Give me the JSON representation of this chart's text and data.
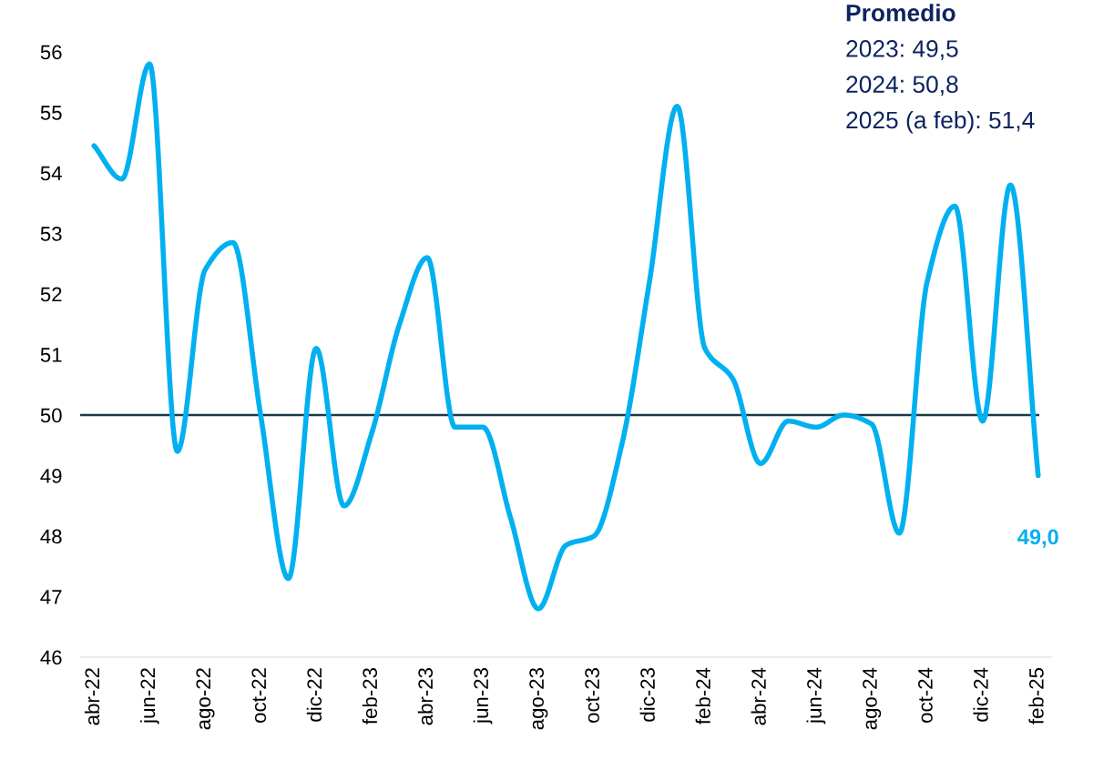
{
  "chart_data": {
    "type": "line",
    "categories": [
      "abr-22",
      null,
      "jun-22",
      null,
      "ago-22",
      null,
      "oct-22",
      null,
      "dic-22",
      null,
      "feb-23",
      null,
      "abr-23",
      null,
      "jun-23",
      null,
      "ago-23",
      null,
      "oct-23",
      null,
      "dic-23",
      null,
      "feb-24",
      null,
      "abr-24",
      null,
      "jun-24",
      null,
      "ago-24",
      null,
      "oct-24",
      null,
      "dic-24",
      null,
      "feb-25"
    ],
    "series": [
      {
        "color": "#00b0f0",
        "values": [
          54.45,
          53.9,
          55.8,
          49.4,
          52.4,
          52.85,
          50.0,
          47.3,
          51.1,
          48.5,
          49.7,
          51.5,
          52.6,
          49.8,
          49.8,
          48.3,
          46.8,
          47.85,
          48.0,
          49.5,
          52.2,
          55.1,
          51.1,
          50.6,
          49.2,
          49.9,
          49.8,
          50.0,
          49.85,
          48.05,
          52.2,
          53.45,
          49.9,
          53.8,
          49.0
        ],
        "value_labels": [
          null,
          null,
          null,
          null,
          null,
          null,
          null,
          null,
          null,
          null,
          null,
          null,
          null,
          null,
          null,
          null,
          null,
          null,
          null,
          null,
          null,
          null,
          null,
          null,
          null,
          null,
          null,
          null,
          null,
          null,
          null,
          null,
          null,
          null,
          "49,0"
        ]
      }
    ],
    "ylim": [
      46,
      56
    ],
    "yticks": [
      46,
      47,
      48,
      49,
      50,
      51,
      52,
      53,
      54,
      55,
      56
    ],
    "grid": false,
    "legend": false,
    "marker": "none",
    "line_style": "solid",
    "ref_lines": [
      {
        "axis": "y",
        "value": 50,
        "color": "#1a3a4a",
        "line_style": "solid"
      }
    ],
    "annotations": [
      "Promedio",
      "2023: 49,5",
      "2024: 50,8",
      "2025 (a feb): 51,4"
    ]
  }
}
